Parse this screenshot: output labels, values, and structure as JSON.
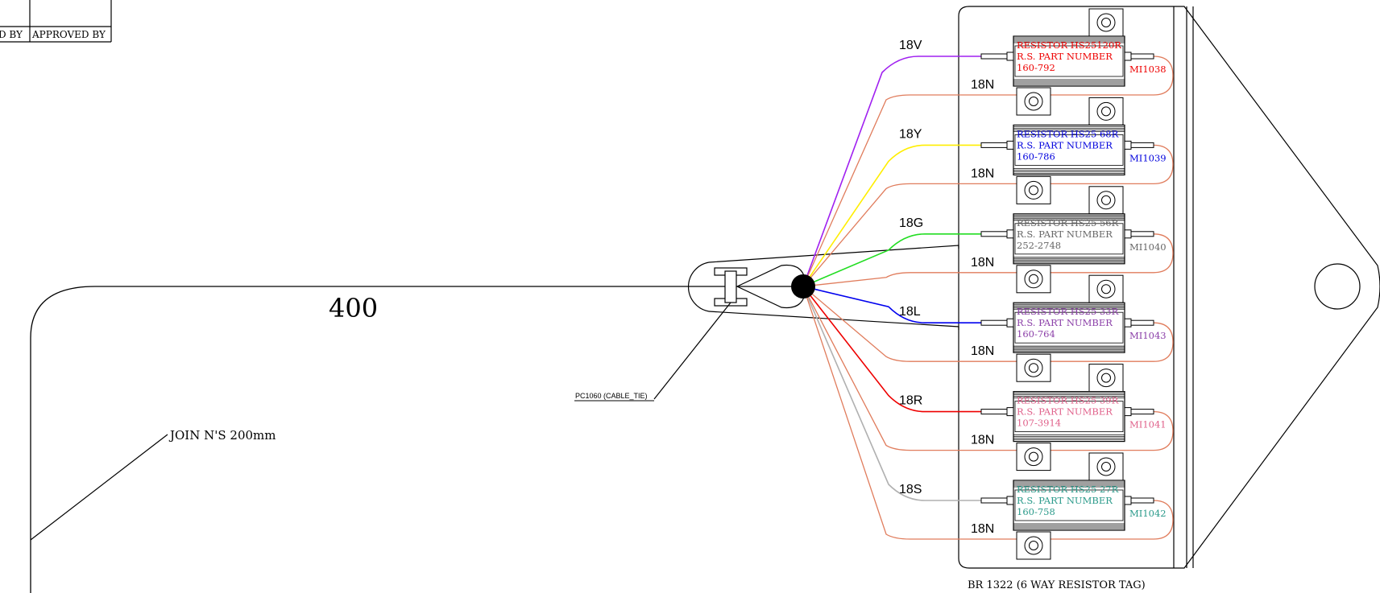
{
  "title_block": {
    "left_label": "D BY",
    "approved_label": "APPROVED BY"
  },
  "dimension_label": "400",
  "cable_tie_label": "PC1060 (CABLE_TIE)",
  "join_note": "JOIN N'S 200mm",
  "assembly_label": "BR 1322  (6 WAY RESISTOR TAG)",
  "colors": {
    "outline": "#000000",
    "neutral_wire": "#e07c5c"
  },
  "wires": [
    {
      "label": "18V",
      "color": "#a020f0"
    },
    {
      "label": "18N",
      "color": "#e07c5c"
    },
    {
      "label": "18Y",
      "color": "#ffee00"
    },
    {
      "label": "18N",
      "color": "#e07c5c"
    },
    {
      "label": "18G",
      "color": "#22dd22"
    },
    {
      "label": "18N",
      "color": "#e07c5c"
    },
    {
      "label": "18L",
      "color": "#0000ee"
    },
    {
      "label": "18N",
      "color": "#e07c5c"
    },
    {
      "label": "18R",
      "color": "#ee0000"
    },
    {
      "label": "18N",
      "color": "#e07c5c"
    },
    {
      "label": "18S",
      "color": "#b0b0b0"
    },
    {
      "label": "18N",
      "color": "#e07c5c"
    }
  ],
  "resistors": [
    {
      "line1": "RESISTOR HS25120R",
      "line2": "R.S. PART NUMBER",
      "line3": "160-792",
      "tag": "MI1038",
      "color": "#ee0000"
    },
    {
      "line1": "RESISTOR HS25 68R",
      "line2": "R.S. PART NUMBER",
      "line3": "160-786",
      "tag": "MI1039",
      "color": "#0000dd"
    },
    {
      "line1": "RESISTOR HS25 56R",
      "line2": "R.S. PART NUMBER",
      "line3": "252-2748",
      "tag": "MI1040",
      "color": "#666666"
    },
    {
      "line1": "RESISTOR HS25 33R",
      "line2": "R.S. PART NUMBER",
      "line3": "160-764",
      "tag": "MI1043",
      "color": "#8b3fa8"
    },
    {
      "line1": "RESISTOR HS25 39R",
      "line2": "R.S. PART NUMBER",
      "line3": "107-3914",
      "tag": "MI1041",
      "color": "#e0608a"
    },
    {
      "line1": "RESISTOR HS25 27R",
      "line2": "R.S. PART NUMBER",
      "line3": "160-758",
      "tag": "MI1042",
      "color": "#2a9a8a"
    }
  ]
}
